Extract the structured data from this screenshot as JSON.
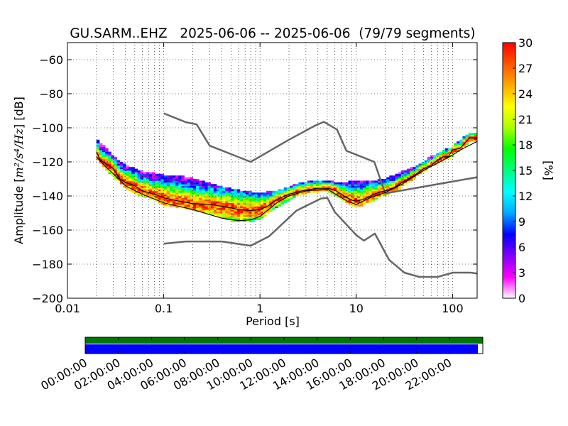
{
  "chart_data": [
    {
      "type": "heatmap",
      "title": "GU.SARM..EHZ   2025-06-06 -- 2025-06-06  (79/79 segments)",
      "xlabel": "Period [s]",
      "ylabel_prefix": "Amplitude [",
      "ylabel_units": "m²/s⁴/Hz",
      "ylabel_suffix": "] [dB]",
      "x_scale": "log",
      "xlim": [
        0.01,
        180
      ],
      "ylim": [
        -200,
        -50
      ],
      "x_ticks": [
        0.01,
        0.1,
        1,
        10,
        100
      ],
      "x_tick_labels": [
        "0.01",
        "0.1",
        "1",
        "10",
        "100"
      ],
      "y_ticks": [
        -200,
        -180,
        -160,
        -140,
        -120,
        -100,
        -80,
        -60
      ],
      "y_tick_labels": [
        "−200",
        "−180",
        "−160",
        "−140",
        "−120",
        "−100",
        "−80",
        "−60"
      ],
      "grid": true,
      "colorbar": {
        "label": "[%]",
        "range": [
          0,
          30
        ],
        "ticks": [
          0,
          3,
          6,
          9,
          12,
          15,
          18,
          21,
          24,
          27,
          30
        ],
        "tick_labels": [
          "0",
          "3",
          "6",
          "9",
          "12",
          "15",
          "18",
          "21",
          "24",
          "27",
          "30"
        ],
        "colors": [
          "#ffffff",
          "#ff00ff",
          "#7f00ff",
          "#0000ff",
          "#00aaff",
          "#00ffff",
          "#00ff80",
          "#00ff00",
          "#aaff00",
          "#ffff00",
          "#ffaa00",
          "#ff5500",
          "#ff0000"
        ]
      },
      "series": [
        {
          "name": "",
          "role": "noise-model-high",
          "color": "#666666",
          "x": [
            0.1,
            0.17,
            0.22,
            0.3,
            0.8,
            2,
            3.8,
            4.6,
            6.3,
            7.9,
            15.4,
            20,
            180
          ],
          "y": [
            -91.5,
            -96.7,
            -98.0,
            -110.5,
            -120.0,
            -107.0,
            -98.5,
            -96.5,
            -101.0,
            -113.5,
            -120.0,
            -138.5,
            -129.0
          ]
        },
        {
          "name": "",
          "role": "noise-model-low",
          "color": "#666666",
          "x": [
            0.1,
            0.17,
            0.4,
            0.8,
            1.24,
            2.4,
            4.3,
            5.0,
            6.0,
            10.0,
            12.0,
            15.6,
            21.9,
            31.6,
            45,
            70,
            101,
            154,
            180
          ],
          "y": [
            -168.0,
            -166.7,
            -166.7,
            -169.2,
            -163.7,
            -148.6,
            -141.5,
            -141.1,
            -149.5,
            -163.0,
            -166.2,
            -162.1,
            -177.5,
            -185.0,
            -187.5,
            -187.5,
            -185.0,
            -185.0,
            -185.5
          ]
        },
        {
          "name": "",
          "role": "mode",
          "color": "#000000",
          "x": [
            0.02,
            0.022,
            0.025,
            0.03,
            0.035,
            0.04,
            0.05,
            0.06,
            0.08,
            0.1,
            0.13,
            0.16,
            0.2,
            0.3,
            0.4,
            0.5,
            0.6,
            0.8,
            1.0,
            1.2,
            1.5,
            2.0,
            2.5,
            3,
            4,
            5,
            6,
            7,
            8,
            9,
            10,
            12,
            14,
            17,
            20,
            25,
            30,
            35,
            40,
            50,
            60,
            70,
            80,
            90,
            100,
            120,
            150,
            180
          ],
          "y": [
            -114,
            -119,
            -121,
            -124,
            -130,
            -132,
            -134,
            -137,
            -139,
            -141,
            -142.5,
            -143.5,
            -144.5,
            -145,
            -146,
            -147,
            -148,
            -148.5,
            -148,
            -146,
            -142,
            -139,
            -137.5,
            -136.5,
            -135.5,
            -135.5,
            -136.5,
            -139,
            -141,
            -142.5,
            -143,
            -142,
            -140,
            -138,
            -137,
            -135,
            -132,
            -130,
            -128,
            -124,
            -122,
            -119,
            -117,
            -117,
            -113,
            -112,
            -106,
            -106
          ]
        },
        {
          "name": "",
          "role": "min",
          "color": "#000000",
          "x": [
            0.02,
            0.025,
            0.03,
            0.04,
            0.06,
            0.1,
            0.2,
            0.4,
            0.6,
            0.8,
            1.0,
            1.5,
            2.0,
            3,
            5,
            8,
            10,
            14,
            20,
            30,
            50,
            80,
            100,
            120,
            180
          ],
          "y": [
            -117,
            -123,
            -127,
            -134,
            -139,
            -144,
            -148,
            -153,
            -154.5,
            -154,
            -152,
            -144,
            -140,
            -137,
            -136,
            -143,
            -145,
            -141,
            -138,
            -133,
            -125,
            -119,
            -116,
            -113,
            -108
          ]
        }
      ],
      "density_bands": [
        {
          "x": [
            0.02,
            0.025,
            0.03,
            0.04,
            0.05,
            0.06,
            0.08,
            0.1,
            0.13,
            0.16,
            0.2,
            0.3,
            0.4,
            0.5,
            0.6,
            0.8,
            1.0,
            1.2,
            1.5,
            2.0,
            2.5,
            3,
            4,
            5,
            6,
            7,
            8,
            10,
            12,
            14,
            17,
            20,
            25,
            30,
            40,
            50,
            60,
            80,
            100,
            120,
            150,
            180
          ],
          "lower": [
            -118,
            -124,
            -128,
            -135,
            -138,
            -140,
            -142,
            -145,
            -146,
            -147,
            -148,
            -150,
            -152,
            -154,
            -155,
            -155,
            -153,
            -150,
            -146,
            -142,
            -139,
            -138,
            -137,
            -137,
            -139,
            -142,
            -144,
            -146,
            -145,
            -143,
            -141,
            -139,
            -137,
            -134,
            -129,
            -125,
            -122,
            -119,
            -116,
            -113,
            -108,
            -108
          ],
          "upper": [
            -107,
            -112,
            -117,
            -122,
            -124,
            -126,
            -127,
            -128,
            -128,
            -129,
            -130,
            -133,
            -135,
            -136,
            -137,
            -138,
            -138,
            -138,
            -137,
            -135,
            -133,
            -132,
            -131,
            -131,
            -132,
            -132,
            -132,
            -131,
            -131,
            -131,
            -131,
            -130,
            -128,
            -126,
            -123,
            -120,
            -117,
            -114,
            -111,
            -108,
            -103,
            -103
          ],
          "note": ""
        }
      ]
    },
    {
      "type": "timeline",
      "xlabel": "",
      "time_ticks": [
        "00:00:00",
        "02:00:00",
        "04:00:00",
        "06:00:00",
        "08:00:00",
        "10:00:00",
        "12:00:00",
        "14:00:00",
        "16:00:00",
        "18:00:00",
        "20:00:00",
        "22:00:00"
      ],
      "span_hours": 24,
      "data_availability": {
        "start_h": 0,
        "end_h": 24,
        "color": "#007700"
      },
      "psd_segments": {
        "start_h": 0,
        "end_h": 23.7,
        "color": "#0000ff"
      }
    }
  ]
}
